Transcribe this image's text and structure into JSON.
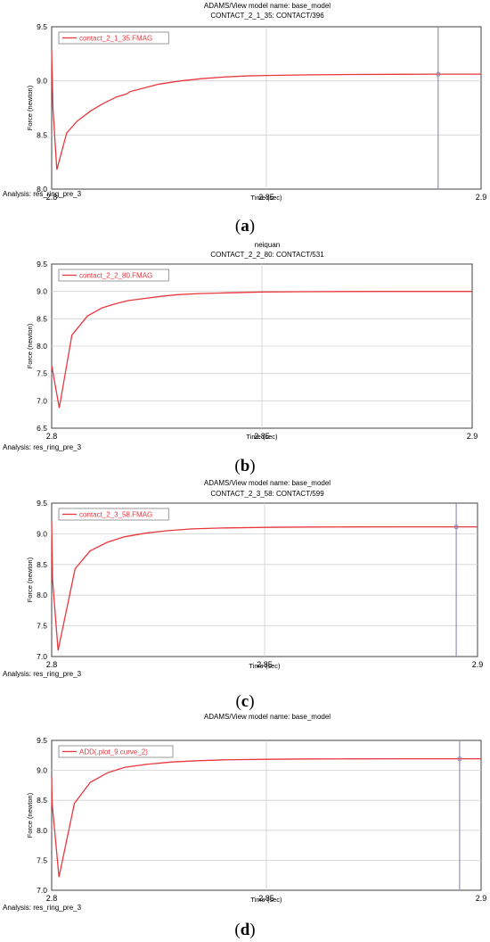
{
  "figure": {
    "captions": [
      "a",
      "b",
      "c",
      "d"
    ]
  },
  "chart_data": [
    {
      "type": "line",
      "title": "ADAMS/View model name: base_model",
      "subtitle": "CONTACT_2_1_35: CONTACT/396",
      "xlabel": "Time (sec)",
      "ylabel": "Force (newton)",
      "analysis": "Analysis:  res_ring_pre_3",
      "xlim": [
        2.8,
        2.9
      ],
      "ylim": [
        8.0,
        9.5
      ],
      "xticks": [
        "2.8",
        "2.85",
        "2.9"
      ],
      "yticks": [
        "8.0",
        "8.5",
        "9.0",
        "9.5"
      ],
      "grid": true,
      "legend_position": "top-left",
      "cursor_x": 2.89,
      "colors": {
        "line": "#e8373d",
        "cursor": "#9090c0",
        "grid": "#d0d0d0"
      },
      "series": [
        {
          "name": "contact_2_1_35.FMAG",
          "x": [
            2.8,
            2.8003,
            2.8012,
            2.8035,
            2.806,
            2.809,
            2.812,
            2.815,
            2.8175,
            2.8182,
            2.821,
            2.825,
            2.83,
            2.835,
            2.84,
            2.845,
            2.85,
            2.86,
            2.87,
            2.88,
            2.89,
            2.9
          ],
          "y": [
            9.28,
            8.75,
            8.18,
            8.52,
            8.63,
            8.72,
            8.79,
            8.85,
            8.88,
            8.9,
            8.93,
            8.97,
            9.0,
            9.02,
            9.035,
            9.045,
            9.05,
            9.056,
            9.059,
            9.061,
            9.062,
            9.062
          ]
        }
      ]
    },
    {
      "type": "line",
      "title": "neiquan",
      "subtitle": "CONTACT_2_2_80: CONTACT/531",
      "xlabel": "Time (sec)",
      "ylabel": "Force (newton)",
      "analysis": "Analysis:  res_ring_pre_3",
      "xlim": [
        2.8,
        2.9
      ],
      "ylim": [
        6.5,
        9.5
      ],
      "xticks": [
        "2.8",
        "2.85",
        "2.9"
      ],
      "yticks": [
        "6.5",
        "7.0",
        "7.5",
        "8.0",
        "8.5",
        "9.0",
        "9.5"
      ],
      "grid": true,
      "legend_position": "top-left",
      "colors": {
        "line": "#e8373d",
        "grid": "#d0d0d0"
      },
      "series": [
        {
          "name": "contact_2_2_80.FMAG",
          "x": [
            2.8,
            2.8018,
            2.8048,
            2.8085,
            2.812,
            2.815,
            2.818,
            2.822,
            2.826,
            2.83,
            2.835,
            2.84,
            2.85,
            2.86,
            2.87,
            2.88,
            2.9
          ],
          "y": [
            7.65,
            6.87,
            8.2,
            8.55,
            8.7,
            8.77,
            8.83,
            8.87,
            8.91,
            8.94,
            8.96,
            8.97,
            8.99,
            8.995,
            8.998,
            9.0,
            9.0
          ]
        }
      ]
    },
    {
      "type": "line",
      "title": "ADAMS/View model name: base_model",
      "subtitle": "CONTACT_2_3_58: CONTACT/599",
      "xlabel": "Time (sec)",
      "ylabel": "Force (newton)",
      "analysis": "Analysis:  res_ring_pre_3",
      "xlim": [
        2.8,
        2.9
      ],
      "ylim": [
        7.0,
        9.5
      ],
      "xticks": [
        "2.8",
        "2.85",
        "2.9"
      ],
      "yticks": [
        "7.0",
        "7.5",
        "8.0",
        "8.5",
        "9.0",
        "9.5"
      ],
      "grid": true,
      "legend_position": "top-left",
      "cursor_x": 2.895,
      "colors": {
        "line": "#e8373d",
        "cursor": "#9090c0",
        "grid": "#d0d0d0"
      },
      "series": [
        {
          "name": "contact_2_3_58.FMAG",
          "x": [
            2.8,
            2.8002,
            2.8015,
            2.8055,
            2.809,
            2.813,
            2.817,
            2.822,
            2.827,
            2.833,
            2.84,
            2.85,
            2.86,
            2.87,
            2.88,
            2.89,
            2.9
          ],
          "y": [
            9.2,
            8.25,
            7.1,
            8.43,
            8.72,
            8.86,
            8.95,
            9.01,
            9.05,
            9.08,
            9.095,
            9.105,
            9.11,
            9.112,
            9.113,
            9.114,
            9.114
          ]
        }
      ]
    },
    {
      "type": "line",
      "title": "ADAMS/View model name: base_model",
      "xlabel": "Time (sec)",
      "ylabel": "Force (newton)",
      "analysis": "Analysis:  res_ring_pre_3",
      "xlim": [
        2.8,
        2.9
      ],
      "ylim": [
        7.0,
        9.5
      ],
      "xticks": [
        "2.8",
        "2.85",
        "2.9"
      ],
      "yticks": [
        "7.0",
        "7.5",
        "8.0",
        "8.5",
        "9.0",
        "9.5"
      ],
      "grid": true,
      "legend_position": "top-left",
      "cursor_x": 2.895,
      "colors": {
        "line": "#e8373d",
        "cursor": "#9090c0",
        "grid": "#d0d0d0"
      },
      "series": [
        {
          "name": "ADD(.plot_9.curve_2)",
          "x": [
            2.8,
            2.8001,
            2.8017,
            2.8053,
            2.809,
            2.813,
            2.817,
            2.822,
            2.828,
            2.834,
            2.84,
            2.85,
            2.86,
            2.87,
            2.88,
            2.89,
            2.9
          ],
          "y": [
            8.9,
            8.45,
            7.22,
            8.45,
            8.8,
            8.96,
            9.05,
            9.1,
            9.14,
            9.16,
            9.175,
            9.185,
            9.19,
            9.192,
            9.193,
            9.194,
            9.194
          ]
        }
      ]
    }
  ]
}
